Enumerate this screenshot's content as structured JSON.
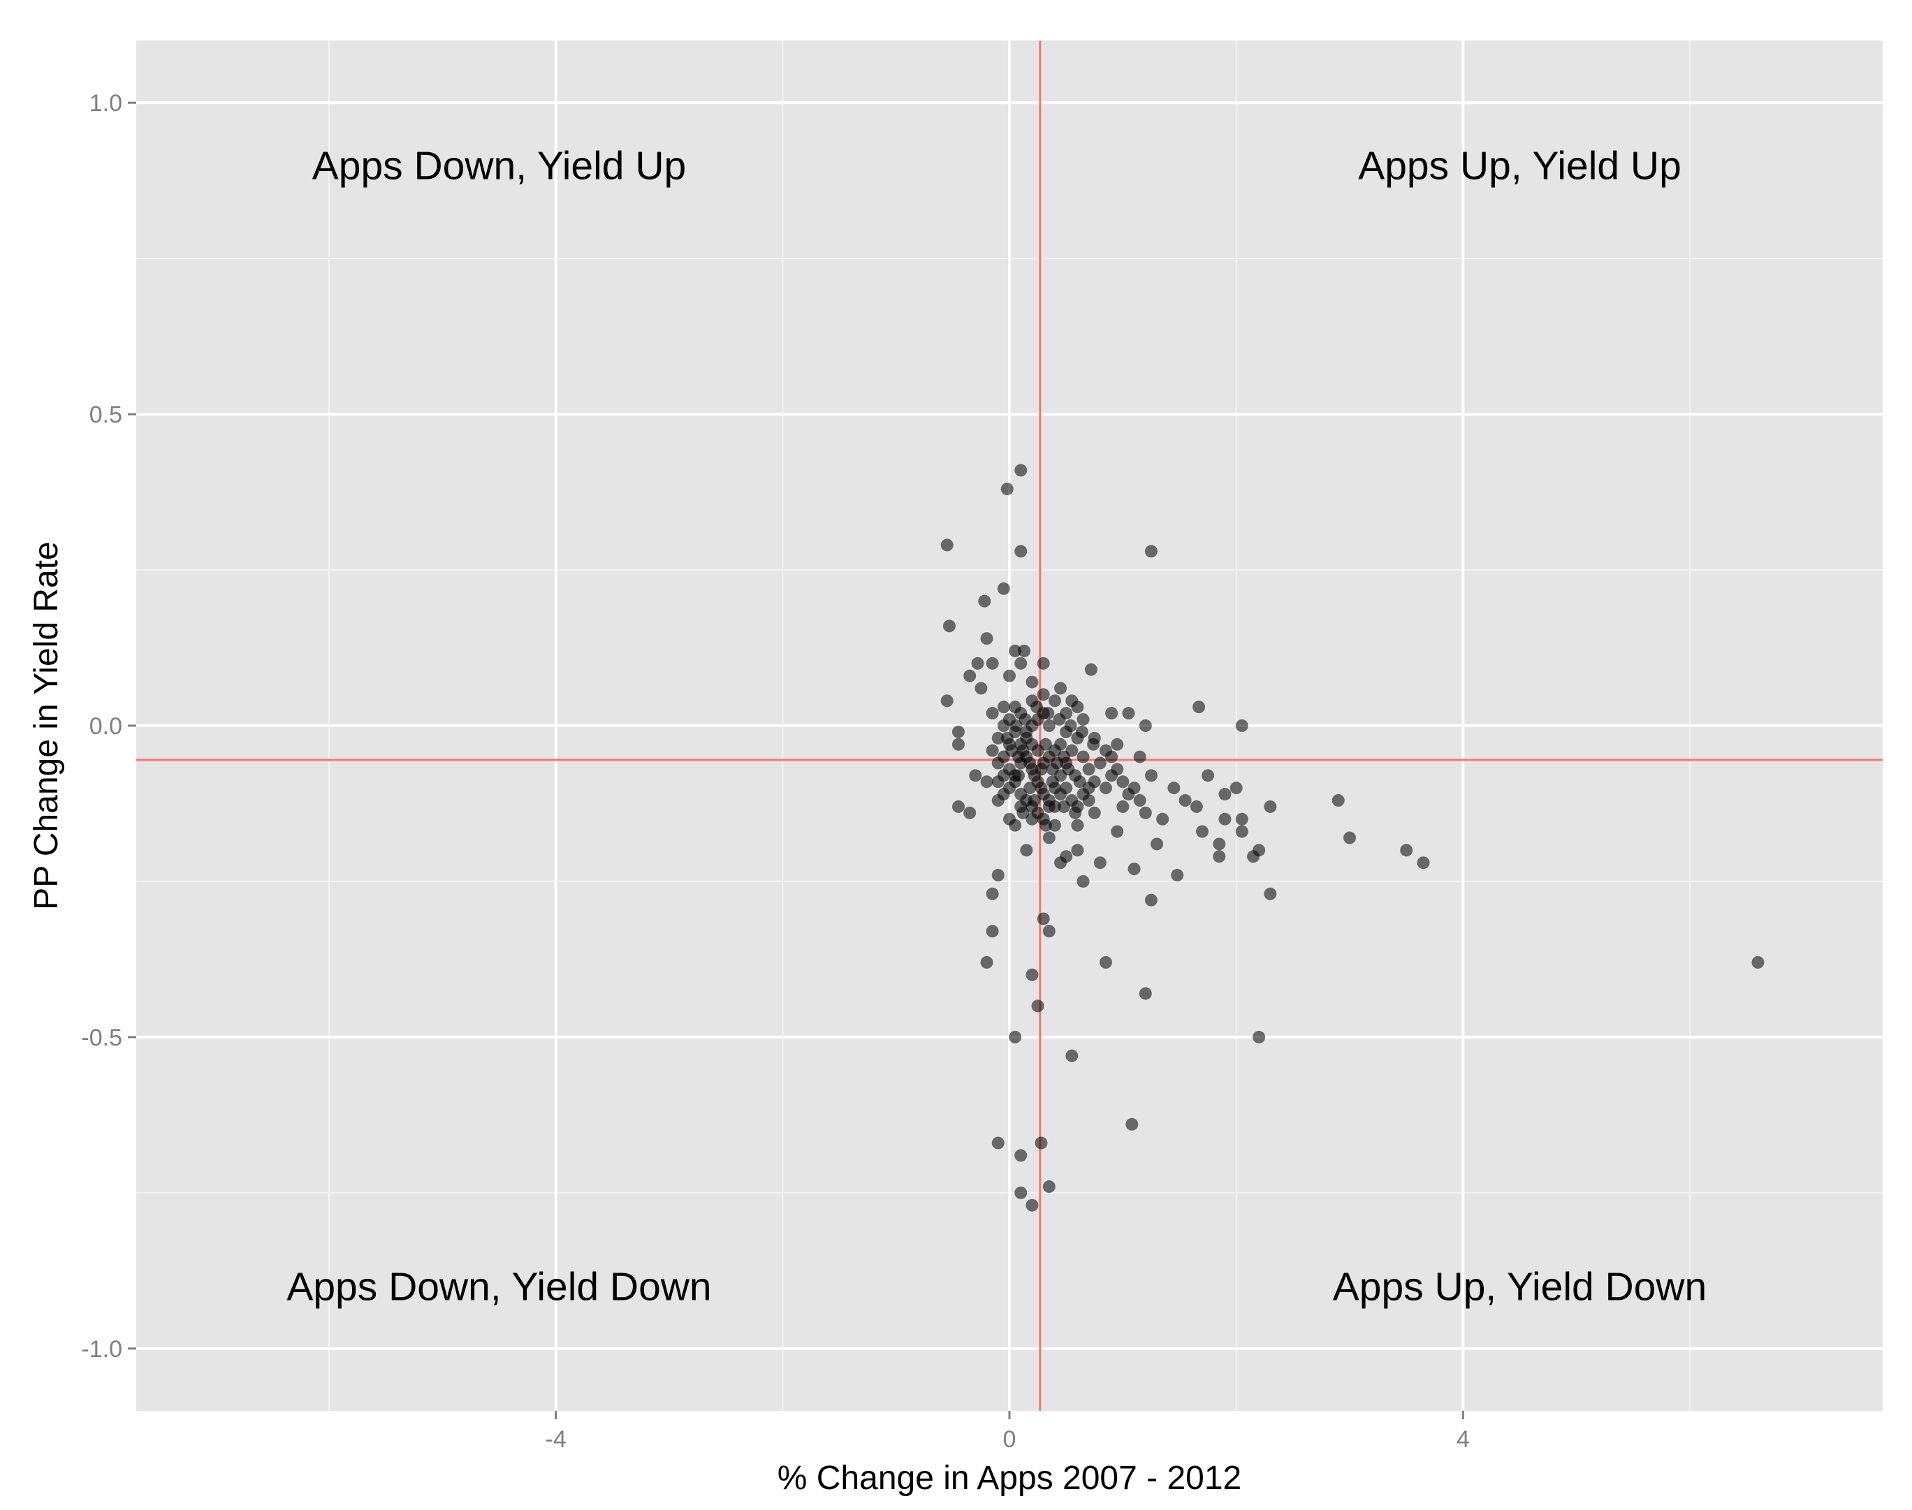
{
  "chart_data": {
    "type": "scatter",
    "title": "",
    "xlabel": "% Change in Apps 2007 - 2012",
    "ylabel": "PP Change in Yield Rate",
    "xlim": [
      -7.7,
      7.7
    ],
    "ylim": [
      -1.1,
      1.1
    ],
    "x_ticks": [
      -4,
      0,
      4
    ],
    "x_tick_labels": [
      "-4",
      "0",
      "4"
    ],
    "y_ticks": [
      -1.0,
      -0.5,
      0.0,
      0.5,
      1.0
    ],
    "y_tick_labels": [
      "-1.0",
      "-0.5",
      "0.0",
      "0.5",
      "1.0"
    ],
    "grid": true,
    "panel_color": "#e5e5e5",
    "grid_color": "#ffffff",
    "point_color": "#000000",
    "point_opacity": 0.55,
    "reference_line_color": "#f8766d",
    "reference_lines": {
      "x": 0.27,
      "y": -0.055
    },
    "quadrant_labels": [
      {
        "text": "Apps Down, Yield Up",
        "x": -4.5,
        "y": 0.9
      },
      {
        "text": "Apps Up, Yield Up",
        "x": 4.5,
        "y": 0.9
      },
      {
        "text": "Apps Down, Yield Down",
        "x": -4.5,
        "y": -0.9
      },
      {
        "text": "Apps Up, Yield Down",
        "x": 4.5,
        "y": -0.9
      }
    ],
    "points": [
      [
        0.1,
        0.41
      ],
      [
        -0.02,
        0.38
      ],
      [
        -0.55,
        0.29
      ],
      [
        0.1,
        0.28
      ],
      [
        1.25,
        0.28
      ],
      [
        -0.05,
        0.22
      ],
      [
        -0.22,
        0.2
      ],
      [
        -0.53,
        0.16
      ],
      [
        -0.2,
        0.14
      ],
      [
        0.05,
        0.12
      ],
      [
        0.13,
        0.12
      ],
      [
        -0.28,
        0.1
      ],
      [
        -0.15,
        0.1
      ],
      [
        0.1,
        0.1
      ],
      [
        0.3,
        0.1
      ],
      [
        0.72,
        0.09
      ],
      [
        -0.35,
        0.08
      ],
      [
        0.0,
        0.08
      ],
      [
        0.2,
        0.07
      ],
      [
        -0.25,
        0.06
      ],
      [
        0.45,
        0.06
      ],
      [
        -0.55,
        0.04
      ],
      [
        0.55,
        0.04
      ],
      [
        1.67,
        0.03
      ],
      [
        0.9,
        0.02
      ],
      [
        1.05,
        0.02
      ],
      [
        0.65,
        0.01
      ],
      [
        1.2,
        0.0
      ],
      [
        2.05,
        0.0
      ],
      [
        -0.45,
        -0.01
      ],
      [
        0.75,
        -0.02
      ],
      [
        0.95,
        -0.03
      ],
      [
        1.15,
        -0.05
      ],
      [
        -0.45,
        -0.03
      ],
      [
        1.75,
        -0.08
      ],
      [
        1.25,
        -0.08
      ],
      [
        1.45,
        -0.1
      ],
      [
        2.0,
        -0.1
      ],
      [
        1.9,
        -0.11
      ],
      [
        1.55,
        -0.12
      ],
      [
        1.65,
        -0.13
      ],
      [
        2.3,
        -0.13
      ],
      [
        2.9,
        -0.12
      ],
      [
        1.9,
        -0.15
      ],
      [
        2.05,
        -0.15
      ],
      [
        1.35,
        -0.15
      ],
      [
        1.7,
        -0.17
      ],
      [
        2.05,
        -0.17
      ],
      [
        1.85,
        -0.19
      ],
      [
        1.3,
        -0.19
      ],
      [
        3.0,
        -0.18
      ],
      [
        3.5,
        -0.2
      ],
      [
        2.15,
        -0.21
      ],
      [
        2.2,
        -0.2
      ],
      [
        1.85,
        -0.21
      ],
      [
        3.65,
        -0.22
      ],
      [
        1.1,
        -0.23
      ],
      [
        1.48,
        -0.24
      ],
      [
        2.3,
        -0.27
      ],
      [
        1.25,
        -0.28
      ],
      [
        0.65,
        -0.25
      ],
      [
        -0.1,
        -0.24
      ],
      [
        -0.15,
        -0.27
      ],
      [
        -0.15,
        -0.33
      ],
      [
        0.3,
        -0.31
      ],
      [
        0.35,
        -0.33
      ],
      [
        -0.2,
        -0.38
      ],
      [
        0.85,
        -0.38
      ],
      [
        0.2,
        -0.4
      ],
      [
        1.2,
        -0.43
      ],
      [
        0.25,
        -0.45
      ],
      [
        0.05,
        -0.5
      ],
      [
        2.2,
        -0.5
      ],
      [
        0.55,
        -0.53
      ],
      [
        1.08,
        -0.64
      ],
      [
        -0.1,
        -0.67
      ],
      [
        0.28,
        -0.67
      ],
      [
        0.1,
        -0.69
      ],
      [
        0.35,
        -0.74
      ],
      [
        0.1,
        -0.75
      ],
      [
        0.2,
        -0.77
      ],
      [
        6.6,
        -0.38
      ],
      [
        -0.45,
        -0.13
      ],
      [
        -0.35,
        -0.14
      ],
      [
        -0.1,
        -0.12
      ],
      [
        0.15,
        -0.2
      ],
      [
        0.35,
        -0.18
      ],
      [
        0.5,
        -0.21
      ],
      [
        0.6,
        -0.2
      ],
      [
        0.8,
        -0.22
      ],
      [
        0.95,
        -0.17
      ],
      [
        0.45,
        -0.22
      ],
      [
        1.0,
        -0.13
      ],
      [
        1.2,
        -0.14
      ],
      [
        0.75,
        -0.14
      ],
      [
        0.05,
        -0.16
      ],
      [
        0.0,
        -0.15
      ],
      [
        -0.2,
        -0.09
      ],
      [
        -0.3,
        -0.08
      ],
      [
        -0.15,
        0.02
      ],
      [
        -0.05,
        0.03
      ],
      [
        0.2,
        0.04
      ],
      [
        0.3,
        0.05
      ],
      [
        0.4,
        0.04
      ],
      [
        0.6,
        0.03
      ],
      [
        0.5,
        0.02
      ],
      [
        0.6,
        -0.16
      ],
      [
        0.9,
        -0.08
      ],
      [
        0.85,
        -0.1
      ],
      [
        1.1,
        -0.1
      ],
      [
        1.15,
        -0.12
      ],
      [
        1.0,
        -0.09
      ],
      [
        1.05,
        -0.11
      ],
      [
        0.7,
        -0.12
      ],
      [
        0.2,
        -0.15
      ],
      [
        0.4,
        -0.16
      ],
      [
        0.1,
        -0.13
      ],
      [
        -0.05,
        -0.11
      ],
      [
        -0.1,
        -0.06
      ],
      [
        -0.15,
        -0.04
      ],
      [
        -0.1,
        -0.02
      ],
      [
        -0.05,
        0.0
      ],
      [
        0.0,
        0.01
      ],
      [
        0.05,
        -0.01
      ],
      [
        0.1,
        -0.03
      ],
      [
        0.15,
        -0.05
      ],
      [
        0.2,
        -0.07
      ],
      [
        0.25,
        -0.09
      ],
      [
        0.3,
        -0.11
      ],
      [
        0.35,
        -0.13
      ],
      [
        0.4,
        -0.1
      ],
      [
        0.45,
        -0.08
      ],
      [
        0.5,
        -0.06
      ],
      [
        0.55,
        -0.04
      ],
      [
        0.6,
        -0.02
      ],
      [
        0.65,
        -0.05
      ],
      [
        0.7,
        -0.07
      ],
      [
        0.75,
        -0.09
      ],
      [
        0.8,
        -0.06
      ],
      [
        0.85,
        -0.04
      ],
      [
        0.9,
        -0.05
      ],
      [
        0.95,
        -0.07
      ],
      [
        0.35,
        0.0
      ],
      [
        0.3,
        0.02
      ],
      [
        0.25,
        0.01
      ],
      [
        0.2,
        0.0
      ],
      [
        0.15,
        -0.01
      ],
      [
        0.1,
        0.02
      ],
      [
        0.05,
        0.03
      ],
      [
        0.0,
        -0.03
      ],
      [
        -0.05,
        -0.05
      ],
      [
        0.0,
        -0.07
      ],
      [
        0.05,
        -0.09
      ],
      [
        0.1,
        -0.11
      ],
      [
        0.15,
        -0.12
      ],
      [
        0.2,
        -0.13
      ],
      [
        0.25,
        -0.14
      ],
      [
        0.3,
        -0.15
      ],
      [
        0.35,
        -0.12
      ],
      [
        0.4,
        -0.13
      ],
      [
        0.45,
        -0.11
      ],
      [
        0.5,
        -0.1
      ],
      [
        0.55,
        -0.12
      ],
      [
        0.6,
        -0.13
      ],
      [
        0.65,
        -0.11
      ],
      [
        0.7,
        -0.1
      ],
      [
        0.45,
        -0.03
      ],
      [
        0.5,
        -0.01
      ],
      [
        0.4,
        -0.04
      ],
      [
        0.35,
        -0.05
      ],
      [
        0.3,
        -0.06
      ],
      [
        0.25,
        -0.04
      ],
      [
        0.2,
        -0.03
      ],
      [
        0.15,
        -0.02
      ],
      [
        0.1,
        -0.06
      ],
      [
        0.05,
        -0.08
      ],
      [
        0.0,
        -0.1
      ],
      [
        -0.05,
        -0.08
      ],
      [
        -0.1,
        -0.09
      ],
      [
        0.12,
        -0.04
      ],
      [
        0.18,
        -0.06
      ],
      [
        0.22,
        -0.08
      ],
      [
        0.28,
        -0.07
      ],
      [
        0.32,
        -0.03
      ],
      [
        0.38,
        -0.07
      ],
      [
        0.42,
        -0.06
      ],
      [
        0.48,
        -0.05
      ],
      [
        0.52,
        -0.07
      ],
      [
        0.58,
        -0.08
      ],
      [
        0.62,
        -0.09
      ],
      [
        0.08,
        -0.05
      ],
      [
        0.02,
        -0.04
      ],
      [
        -0.02,
        -0.02
      ],
      [
        0.06,
        0.0
      ],
      [
        0.14,
        0.01
      ],
      [
        0.24,
        0.03
      ],
      [
        0.34,
        0.02
      ],
      [
        0.44,
        0.01
      ],
      [
        0.54,
        0.0
      ],
      [
        0.64,
        -0.01
      ],
      [
        0.74,
        -0.03
      ],
      [
        0.28,
        -0.1
      ],
      [
        0.18,
        -0.1
      ],
      [
        0.08,
        -0.08
      ],
      [
        0.38,
        -0.09
      ],
      [
        0.48,
        -0.13
      ],
      [
        0.58,
        -0.14
      ],
      [
        0.22,
        -0.12
      ],
      [
        0.12,
        -0.14
      ],
      [
        0.32,
        -0.16
      ]
    ]
  }
}
